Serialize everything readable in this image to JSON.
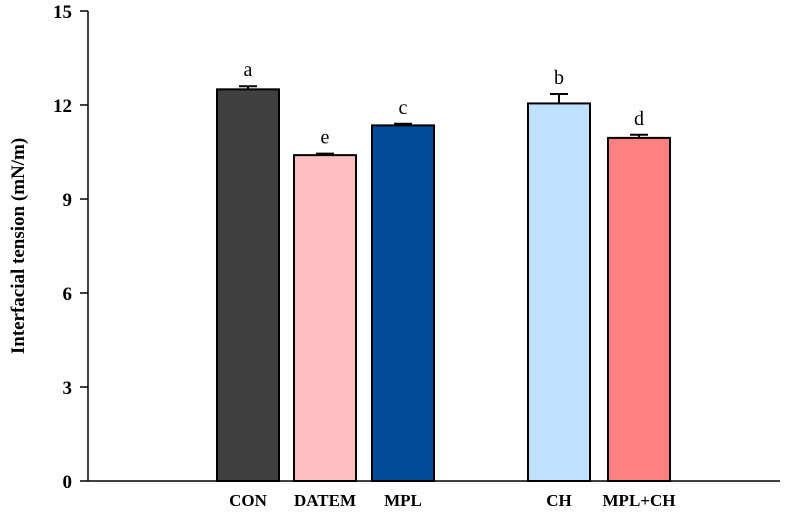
{
  "chart_data": {
    "type": "bar",
    "title": "",
    "xlabel": "",
    "ylabel": "Interfacial tension (mN/m)",
    "ylim": [
      0,
      15
    ],
    "yticks": [
      0,
      3,
      6,
      9,
      12,
      15
    ],
    "grid": false,
    "legend": "none",
    "categories": [
      "CON",
      "DATEM",
      "MPL",
      "CH",
      "MPL+CH"
    ],
    "values": [
      12.5,
      10.4,
      11.35,
      12.05,
      10.95
    ],
    "errors": [
      0.1,
      0.05,
      0.05,
      0.3,
      0.1
    ],
    "significance_letters": [
      "a",
      "e",
      "c",
      "b",
      "d"
    ],
    "colors": [
      "#404040",
      "#FFBFC0",
      "#004C99",
      "#C0E0FF",
      "#FF8080"
    ]
  }
}
